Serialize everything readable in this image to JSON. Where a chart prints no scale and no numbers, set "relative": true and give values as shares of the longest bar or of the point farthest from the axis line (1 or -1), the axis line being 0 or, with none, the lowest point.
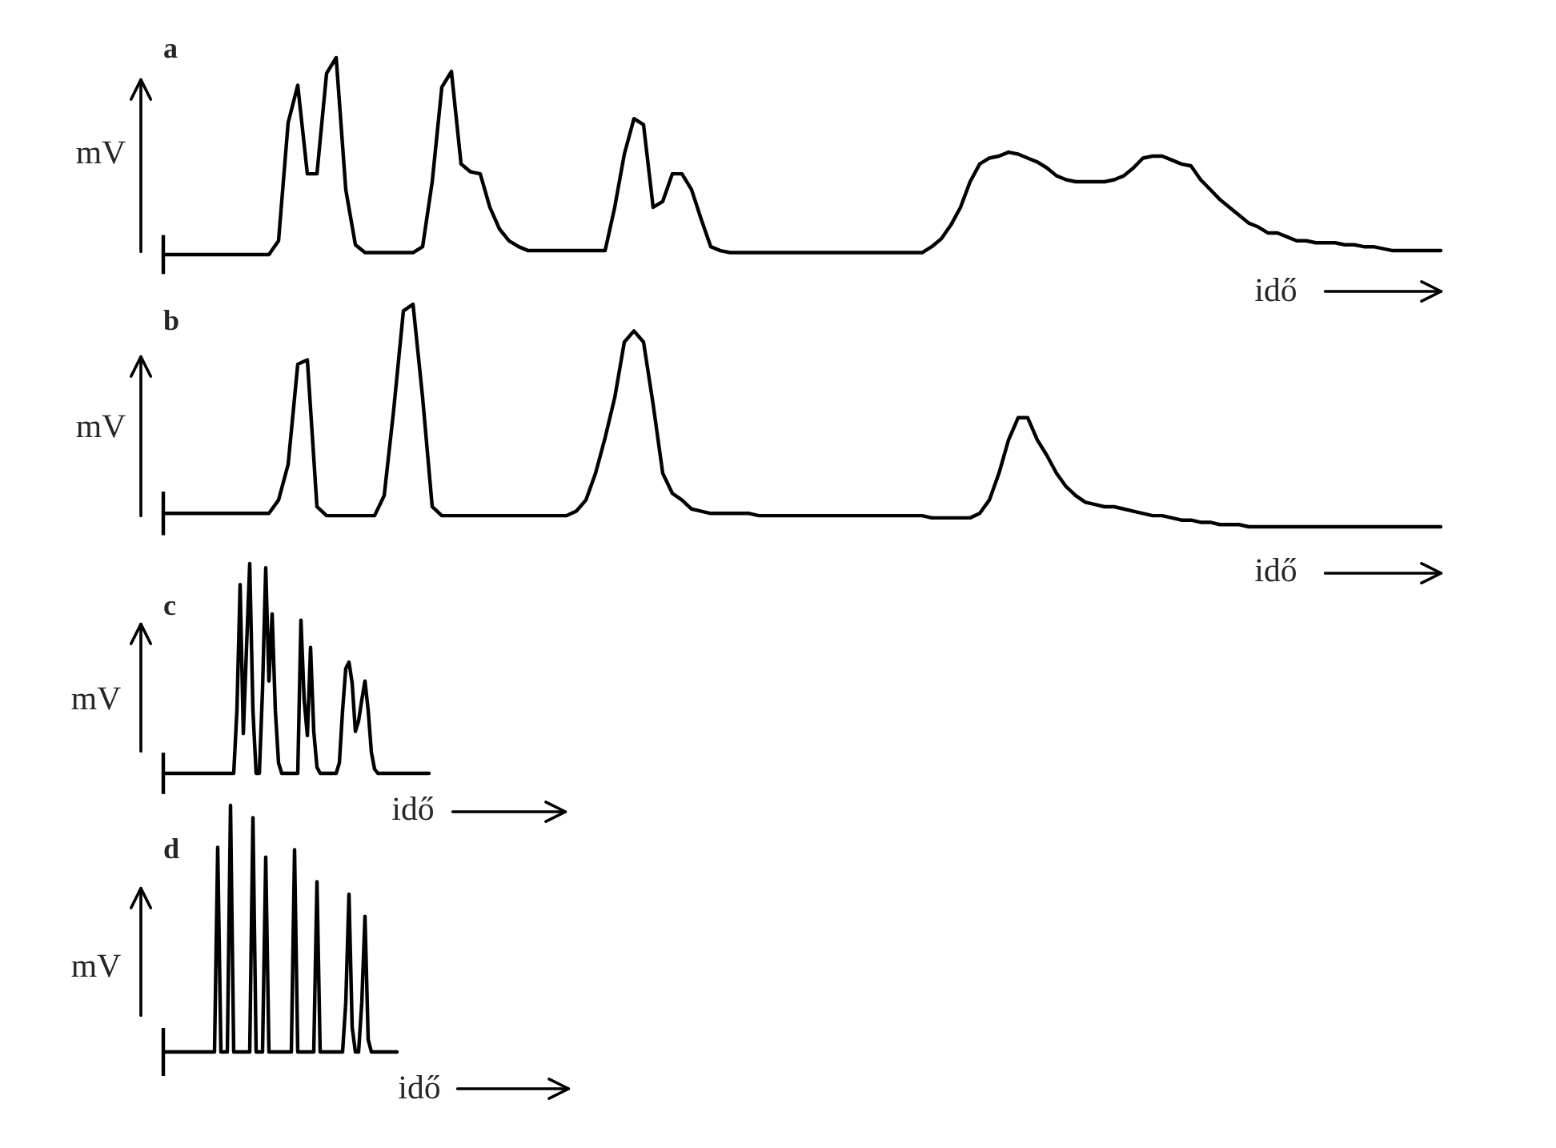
{
  "chart_data": [
    {
      "type": "line",
      "title": "a",
      "xlabel": "idő",
      "ylabel": "mV",
      "relative": true,
      "categories": [
        null,
        null,
        null,
        null,
        null,
        null,
        null,
        null,
        null,
        null,
        null,
        null,
        null,
        null,
        null,
        null,
        null,
        null,
        null,
        null,
        null,
        null,
        null,
        null,
        null,
        null,
        null,
        null,
        null,
        null,
        null,
        null,
        null,
        null,
        null,
        null,
        null,
        null,
        null,
        null,
        null,
        null,
        null,
        null,
        null,
        null,
        null,
        null,
        null,
        null,
        null,
        null,
        null,
        null,
        null,
        null,
        null,
        null,
        null,
        null,
        null,
        null,
        null,
        null,
        null,
        null,
        null,
        null,
        null,
        null,
        null,
        null,
        null,
        null,
        null,
        null,
        null,
        null,
        null,
        null,
        null,
        null,
        null,
        null,
        null,
        null,
        null,
        null,
        null,
        null,
        null,
        null,
        null,
        null,
        null,
        null,
        null,
        null,
        null,
        null,
        null,
        null,
        null,
        null,
        null,
        null,
        null,
        null,
        null,
        null,
        null,
        null,
        null,
        null,
        null,
        null,
        null,
        null,
        null,
        null,
        null,
        null,
        null,
        null,
        null,
        null,
        null,
        null,
        null,
        null,
        null,
        null,
        null,
        null
      ],
      "series": [
        {
          "color": "#000000",
          "values": [
            0,
            0,
            0,
            0,
            0,
            0,
            0,
            0,
            0,
            0,
            0,
            0,
            0.07,
            0.67,
            0.86,
            0.41,
            0.41,
            0.92,
            1,
            0.33,
            0.05,
            0.01,
            0.01,
            0.01,
            0.01,
            0.01,
            0.01,
            0.04,
            0.37,
            0.85,
            0.93,
            0.46,
            0.42,
            0.41,
            0.24,
            0.13,
            0.07,
            0.04,
            0.02,
            0.02,
            0.02,
            0.02,
            0.02,
            0.02,
            0.02,
            0.02,
            0.02,
            0.24,
            0.51,
            0.69,
            0.66,
            0.24,
            0.27,
            0.41,
            0.41,
            0.33,
            0.18,
            0.04,
            0.02,
            0.01,
            0.01,
            0.01,
            0.01,
            0.01,
            0.01,
            0.01,
            0.01,
            0.01,
            0.01,
            0.01,
            0.01,
            0.01,
            0.01,
            0.01,
            0.01,
            0.01,
            0.01,
            0.01,
            0.01,
            0.01,
            0.04,
            0.08,
            0.15,
            0.24,
            0.37,
            0.46,
            0.49,
            0.5,
            0.52,
            0.51,
            0.49,
            0.47,
            0.44,
            0.4,
            0.38,
            0.37,
            0.37,
            0.37,
            0.37,
            0.38,
            0.4,
            0.44,
            0.49,
            0.5,
            0.5,
            0.48,
            0.46,
            0.45,
            0.38,
            0.33,
            0.28,
            0.24,
            0.2,
            0.16,
            0.14,
            0.11,
            0.11,
            0.09,
            0.07,
            0.07,
            0.06,
            0.06,
            0.06,
            0.05,
            0.05,
            0.04,
            0.04,
            0.03,
            0.02,
            0.02,
            0.02,
            0.02,
            0.02,
            0.02
          ]
        }
      ]
    },
    {
      "type": "line",
      "title": "b",
      "xlabel": "idő",
      "ylabel": "mV",
      "relative": true,
      "categories": [
        null,
        null,
        null,
        null,
        null,
        null,
        null,
        null,
        null,
        null,
        null,
        null,
        null,
        null,
        null,
        null,
        null,
        null,
        null,
        null,
        null,
        null,
        null,
        null,
        null,
        null,
        null,
        null,
        null,
        null,
        null,
        null,
        null,
        null,
        null,
        null,
        null,
        null,
        null,
        null,
        null,
        null,
        null,
        null,
        null,
        null,
        null,
        null,
        null,
        null,
        null,
        null,
        null,
        null,
        null,
        null,
        null,
        null,
        null,
        null,
        null,
        null,
        null,
        null,
        null,
        null,
        null,
        null,
        null,
        null,
        null,
        null,
        null,
        null,
        null,
        null,
        null,
        null,
        null,
        null,
        null,
        null,
        null,
        null,
        null,
        null,
        null,
        null,
        null,
        null,
        null,
        null,
        null,
        null,
        null,
        null,
        null,
        null,
        null,
        null,
        null,
        null,
        null,
        null,
        null,
        null,
        null,
        null,
        null,
        null,
        null,
        null,
        null,
        null,
        null,
        null,
        null,
        null,
        null,
        null,
        null,
        null,
        null,
        null,
        null,
        null,
        null,
        null,
        null,
        null,
        null,
        null,
        null,
        null
      ],
      "series": [
        {
          "color": "#000000",
          "values": [
            0.06,
            0.06,
            0.06,
            0.06,
            0.06,
            0.06,
            0.06,
            0.06,
            0.06,
            0.06,
            0.06,
            0.06,
            0.12,
            0.28,
            0.73,
            0.75,
            0.09,
            0.05,
            0.05,
            0.05,
            0.05,
            0.05,
            0.05,
            0.14,
            0.53,
            0.97,
            1,
            0.58,
            0.09,
            0.05,
            0.05,
            0.05,
            0.05,
            0.05,
            0.05,
            0.05,
            0.05,
            0.05,
            0.05,
            0.05,
            0.05,
            0.05,
            0.05,
            0.07,
            0.12,
            0.24,
            0.4,
            0.58,
            0.83,
            0.88,
            0.83,
            0.55,
            0.24,
            0.15,
            0.12,
            0.08,
            0.07,
            0.06,
            0.06,
            0.06,
            0.06,
            0.06,
            0.05,
            0.05,
            0.05,
            0.05,
            0.05,
            0.05,
            0.05,
            0.05,
            0.05,
            0.05,
            0.05,
            0.05,
            0.05,
            0.05,
            0.05,
            0.05,
            0.05,
            0.05,
            0.04,
            0.04,
            0.04,
            0.04,
            0.04,
            0.06,
            0.12,
            0.24,
            0.39,
            0.49,
            0.49,
            0.39,
            0.32,
            0.24,
            0.18,
            0.14,
            0.11,
            0.1,
            0.09,
            0.09,
            0.08,
            0.07,
            0.06,
            0.05,
            0.05,
            0.04,
            0.03,
            0.03,
            0.02,
            0.02,
            0.01,
            0.01,
            0.01,
            0,
            0,
            0,
            0,
            0,
            0,
            0,
            0,
            0,
            0,
            0,
            0,
            0,
            0,
            0,
            0,
            0,
            0,
            0,
            0,
            0
          ]
        }
      ]
    },
    {
      "type": "line",
      "title": "c",
      "xlabel": "idő",
      "ylabel": "mV",
      "relative": true,
      "categories": [
        null,
        null,
        null,
        null,
        null,
        null,
        null,
        null,
        null,
        null,
        null,
        null,
        null,
        null,
        null,
        null,
        null,
        null,
        null,
        null,
        null,
        null,
        null,
        null,
        null,
        null,
        null,
        null,
        null,
        null,
        null,
        null,
        null,
        null,
        null,
        null,
        null,
        null,
        null,
        null,
        null,
        null,
        null,
        null,
        null,
        null,
        null,
        null,
        null,
        null,
        null,
        null,
        null,
        null,
        null,
        null,
        null,
        null,
        null,
        null,
        null,
        null,
        null,
        null,
        null,
        null,
        null,
        null,
        null,
        null,
        null,
        null,
        null,
        null,
        null,
        null,
        null,
        null,
        null,
        null,
        null,
        null,
        null,
        null
      ],
      "series": [
        {
          "color": "#000000",
          "values": [
            0,
            0,
            0,
            0,
            0,
            0,
            0,
            0,
            0,
            0,
            0,
            0,
            0,
            0,
            0,
            0,
            0,
            0,
            0,
            0,
            0,
            0,
            0,
            0.3,
            0.9,
            0.19,
            0.6,
            1,
            0.3,
            0,
            0,
            0.4,
            0.98,
            0.44,
            0.76,
            0.3,
            0.05,
            0,
            0,
            0,
            0,
            0,
            0,
            0.73,
            0.35,
            0.18,
            0.6,
            0.2,
            0.03,
            0,
            0,
            0,
            0,
            0,
            0,
            0.05,
            0.3,
            0.5,
            0.53,
            0.43,
            0.2,
            0.25,
            0.35,
            0.44,
            0.3,
            0.1,
            0.02,
            0,
            0,
            0,
            0,
            0,
            0,
            0,
            0,
            0,
            0,
            0,
            0,
            0,
            0,
            0,
            0,
            0
          ]
        }
      ]
    },
    {
      "type": "line",
      "title": "d",
      "xlabel": "idő",
      "ylabel": "mV",
      "relative": true,
      "categories": [
        null,
        null,
        null,
        null,
        null,
        null,
        null,
        null,
        null,
        null,
        null,
        null,
        null,
        null,
        null,
        null,
        null,
        null,
        null,
        null,
        null,
        null,
        null,
        null,
        null,
        null,
        null,
        null,
        null,
        null,
        null,
        null,
        null,
        null,
        null,
        null,
        null,
        null,
        null,
        null,
        null,
        null,
        null,
        null,
        null,
        null,
        null,
        null,
        null,
        null,
        null,
        null,
        null,
        null,
        null,
        null,
        null,
        null,
        null,
        null,
        null,
        null,
        null,
        null,
        null,
        null,
        null,
        null,
        null,
        null,
        null,
        null,
        null,
        null
      ],
      "series": [
        {
          "color": "#000000",
          "values": [
            0,
            0,
            0,
            0,
            0,
            0,
            0,
            0,
            0,
            0,
            0,
            0,
            0,
            0,
            0,
            0,
            0,
            0.83,
            0,
            0,
            0,
            1,
            0,
            0,
            0,
            0,
            0,
            0,
            0.95,
            0,
            0,
            0,
            0.79,
            0,
            0,
            0,
            0,
            0,
            0,
            0,
            0,
            0.82,
            0,
            0,
            0,
            0,
            0,
            0,
            0.69,
            0,
            0,
            0,
            0,
            0,
            0,
            0,
            0,
            0.2,
            0.64,
            0.1,
            0,
            0,
            0.2,
            0.55,
            0.05,
            0,
            0,
            0,
            0,
            0,
            0,
            0,
            0,
            0
          ]
        }
      ]
    }
  ]
}
